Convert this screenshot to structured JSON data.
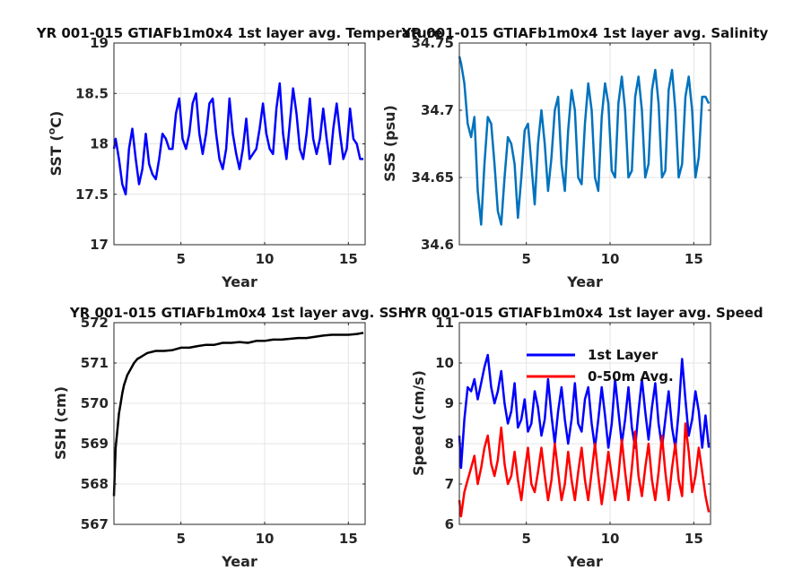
{
  "chart_data": [
    {
      "id": "sst",
      "type": "line",
      "title": "YR 001-015 GTIAFb1m0x4 1st layer avg. Temperature",
      "xlabel": "Year",
      "ylabel": "SST (°C)",
      "ylabel_main": "SST (",
      "ylabel_sup": "o",
      "ylabel_tail": "C)",
      "xlim": [
        1,
        16
      ],
      "ylim": [
        17,
        19
      ],
      "xticks": [
        "5",
        "10",
        "15"
      ],
      "yticks": [
        "17",
        "17.5",
        "18",
        "18.5",
        "19"
      ],
      "grid": true,
      "series": [
        {
          "color": "#0000ff",
          "x": [
            1.0,
            1.1,
            1.3,
            1.5,
            1.7,
            1.9,
            2.1,
            2.3,
            2.5,
            2.7,
            2.9,
            3.1,
            3.3,
            3.5,
            3.7,
            3.9,
            4.1,
            4.3,
            4.5,
            4.7,
            4.9,
            5.1,
            5.3,
            5.5,
            5.7,
            5.9,
            6.1,
            6.3,
            6.5,
            6.7,
            6.9,
            7.1,
            7.3,
            7.5,
            7.7,
            7.9,
            8.1,
            8.3,
            8.5,
            8.7,
            8.9,
            9.1,
            9.3,
            9.5,
            9.7,
            9.9,
            10.1,
            10.3,
            10.5,
            10.7,
            10.9,
            11.1,
            11.3,
            11.5,
            11.7,
            11.9,
            12.1,
            12.3,
            12.5,
            12.7,
            12.9,
            13.1,
            13.3,
            13.5,
            13.7,
            13.9,
            14.1,
            14.3,
            14.5,
            14.7,
            14.9,
            15.1,
            15.3,
            15.5,
            15.7,
            15.9
          ],
          "values": [
            17.95,
            18.05,
            17.85,
            17.6,
            17.5,
            17.95,
            18.15,
            17.85,
            17.6,
            17.75,
            18.1,
            17.8,
            17.7,
            17.65,
            17.85,
            18.1,
            18.05,
            17.95,
            17.95,
            18.3,
            18.45,
            18.05,
            17.95,
            18.1,
            18.4,
            18.5,
            18.1,
            17.9,
            18.1,
            18.4,
            18.45,
            18.1,
            17.85,
            17.75,
            17.95,
            18.45,
            18.1,
            17.9,
            17.75,
            17.95,
            18.25,
            17.85,
            17.9,
            17.95,
            18.15,
            18.4,
            18.1,
            17.95,
            17.9,
            18.35,
            18.6,
            18.1,
            17.85,
            18.2,
            18.55,
            18.3,
            17.95,
            17.85,
            18.1,
            18.45,
            18.05,
            17.9,
            18.05,
            18.35,
            18.05,
            17.8,
            18.15,
            18.4,
            18.1,
            17.85,
            17.95,
            18.35,
            18.05,
            18.0,
            17.85,
            17.85
          ]
        }
      ]
    },
    {
      "id": "sss",
      "type": "line",
      "title": "YR 001-015 GTIAFb1m0x4 1st layer avg. Salinity",
      "xlabel": "Year",
      "ylabel": "SSS (psu)",
      "xlim": [
        1,
        16
      ],
      "ylim": [
        34.6,
        34.75
      ],
      "xticks": [
        "5",
        "10",
        "15"
      ],
      "yticks": [
        "34.6",
        "34.65",
        "34.7",
        "34.75"
      ],
      "grid": true,
      "series": [
        {
          "color": "#0072bd",
          "x": [
            1.0,
            1.1,
            1.3,
            1.5,
            1.7,
            1.9,
            2.1,
            2.3,
            2.5,
            2.7,
            2.9,
            3.1,
            3.3,
            3.5,
            3.7,
            3.9,
            4.1,
            4.3,
            4.5,
            4.7,
            4.9,
            5.1,
            5.3,
            5.5,
            5.7,
            5.9,
            6.1,
            6.3,
            6.5,
            6.7,
            6.9,
            7.1,
            7.3,
            7.5,
            7.7,
            7.9,
            8.1,
            8.3,
            8.5,
            8.7,
            8.9,
            9.1,
            9.3,
            9.5,
            9.7,
            9.9,
            10.1,
            10.3,
            10.5,
            10.7,
            10.9,
            11.1,
            11.3,
            11.5,
            11.7,
            11.9,
            12.1,
            12.3,
            12.5,
            12.7,
            12.9,
            13.1,
            13.3,
            13.5,
            13.7,
            13.9,
            14.1,
            14.3,
            14.5,
            14.7,
            14.9,
            15.1,
            15.3,
            15.5,
            15.7,
            15.9
          ],
          "values": [
            34.74,
            34.735,
            34.72,
            34.69,
            34.68,
            34.695,
            34.64,
            34.615,
            34.66,
            34.695,
            34.69,
            34.66,
            34.625,
            34.615,
            34.65,
            34.68,
            34.675,
            34.66,
            34.62,
            34.65,
            34.685,
            34.69,
            34.66,
            34.63,
            34.675,
            34.7,
            34.675,
            34.64,
            34.665,
            34.7,
            34.71,
            34.66,
            34.64,
            34.685,
            34.715,
            34.7,
            34.65,
            34.645,
            34.69,
            34.72,
            34.7,
            34.65,
            34.64,
            34.695,
            34.72,
            34.705,
            34.655,
            34.65,
            34.705,
            34.725,
            34.7,
            34.65,
            34.655,
            34.71,
            34.725,
            34.7,
            34.65,
            34.66,
            34.715,
            34.73,
            34.705,
            34.65,
            34.655,
            34.715,
            34.73,
            34.7,
            34.65,
            34.66,
            34.71,
            34.725,
            34.7,
            34.65,
            34.665,
            34.71,
            34.71,
            34.705
          ]
        }
      ]
    },
    {
      "id": "ssh",
      "type": "line",
      "title": "YR 001-015 GTIAFb1m0x4 1st layer avg. SSH",
      "xlabel": "Year",
      "ylabel": "SSH (cm)",
      "xlim": [
        1,
        16
      ],
      "ylim": [
        567,
        572
      ],
      "xticks": [
        "5",
        "10",
        "15"
      ],
      "yticks": [
        "567",
        "568",
        "569",
        "570",
        "571",
        "572"
      ],
      "grid": true,
      "series": [
        {
          "color": "#000000",
          "x": [
            1.0,
            1.05,
            1.1,
            1.2,
            1.3,
            1.4,
            1.5,
            1.6,
            1.8,
            2.0,
            2.2,
            2.4,
            2.6,
            2.8,
            3.0,
            3.5,
            4.0,
            4.5,
            5.0,
            5.5,
            6.0,
            6.5,
            7.0,
            7.5,
            8.0,
            8.5,
            9.0,
            9.5,
            10.0,
            10.5,
            11.0,
            11.5,
            12.0,
            12.5,
            13.0,
            13.5,
            14.0,
            14.5,
            15.0,
            15.5,
            15.9
          ],
          "values": [
            567.7,
            568.3,
            568.9,
            569.3,
            569.75,
            570.0,
            570.25,
            570.45,
            570.7,
            570.85,
            571.0,
            571.1,
            571.15,
            571.2,
            571.25,
            571.3,
            571.3,
            571.32,
            571.38,
            571.38,
            571.42,
            571.45,
            571.45,
            571.5,
            571.5,
            571.52,
            571.5,
            571.55,
            571.55,
            571.58,
            571.58,
            571.6,
            571.62,
            571.62,
            571.65,
            571.68,
            571.7,
            571.7,
            571.7,
            571.72,
            571.75
          ]
        }
      ]
    },
    {
      "id": "speed",
      "type": "line",
      "title": "YR 001-015 GTIAFb1m0x4 1st layer avg. Speed",
      "xlabel": "Year",
      "ylabel": "Speed (cm/s)",
      "xlim": [
        1,
        16
      ],
      "ylim": [
        6,
        11
      ],
      "xticks": [
        "5",
        "10",
        "15"
      ],
      "yticks": [
        "6",
        "7",
        "8",
        "9",
        "10",
        "11"
      ],
      "grid": true,
      "legend": "top-right",
      "series": [
        {
          "name": "1st Layer",
          "color": "#0000ff",
          "x": [
            1.0,
            1.1,
            1.3,
            1.5,
            1.7,
            1.9,
            2.1,
            2.3,
            2.5,
            2.7,
            2.9,
            3.1,
            3.3,
            3.5,
            3.7,
            3.9,
            4.1,
            4.3,
            4.5,
            4.7,
            4.9,
            5.1,
            5.3,
            5.5,
            5.7,
            5.9,
            6.1,
            6.3,
            6.5,
            6.7,
            6.9,
            7.1,
            7.3,
            7.5,
            7.7,
            7.9,
            8.1,
            8.3,
            8.5,
            8.7,
            8.9,
            9.1,
            9.3,
            9.5,
            9.7,
            9.9,
            10.1,
            10.3,
            10.5,
            10.7,
            10.9,
            11.1,
            11.3,
            11.5,
            11.7,
            11.9,
            12.1,
            12.3,
            12.5,
            12.7,
            12.9,
            13.1,
            13.3,
            13.5,
            13.7,
            13.9,
            14.1,
            14.3,
            14.5,
            14.7,
            14.9,
            15.1,
            15.3,
            15.5,
            15.7,
            15.9
          ],
          "values": [
            8.2,
            7.4,
            8.6,
            9.4,
            9.3,
            9.6,
            9.1,
            9.5,
            9.9,
            10.2,
            9.4,
            9.0,
            9.3,
            9.8,
            9.0,
            8.5,
            8.8,
            9.5,
            8.4,
            8.6,
            9.1,
            8.3,
            8.5,
            9.3,
            8.9,
            8.2,
            8.6,
            9.6,
            8.7,
            8.0,
            8.8,
            9.4,
            8.6,
            8.0,
            8.6,
            9.5,
            8.5,
            8.3,
            9.1,
            9.4,
            8.5,
            7.9,
            8.6,
            9.4,
            8.7,
            7.9,
            8.5,
            9.6,
            8.8,
            8.0,
            8.6,
            9.4,
            8.4,
            7.9,
            8.8,
            9.6,
            8.8,
            8.1,
            8.9,
            9.5,
            8.5,
            7.9,
            8.6,
            9.3,
            8.4,
            7.9,
            8.8,
            10.1,
            9.1,
            8.2,
            8.6,
            9.3,
            8.8,
            7.9,
            8.7,
            7.9
          ]
        },
        {
          "name": "0-50m Avg.",
          "color": "#ff0000",
          "x": [
            1.0,
            1.1,
            1.3,
            1.5,
            1.7,
            1.9,
            2.1,
            2.3,
            2.5,
            2.7,
            2.9,
            3.1,
            3.3,
            3.5,
            3.7,
            3.9,
            4.1,
            4.3,
            4.5,
            4.7,
            4.9,
            5.1,
            5.3,
            5.5,
            5.7,
            5.9,
            6.1,
            6.3,
            6.5,
            6.7,
            6.9,
            7.1,
            7.3,
            7.5,
            7.7,
            7.9,
            8.1,
            8.3,
            8.5,
            8.7,
            8.9,
            9.1,
            9.3,
            9.5,
            9.7,
            9.9,
            10.1,
            10.3,
            10.5,
            10.7,
            10.9,
            11.1,
            11.3,
            11.5,
            11.7,
            11.9,
            12.1,
            12.3,
            12.5,
            12.7,
            12.9,
            13.1,
            13.3,
            13.5,
            13.7,
            13.9,
            14.1,
            14.3,
            14.5,
            14.7,
            14.9,
            15.1,
            15.3,
            15.5,
            15.7,
            15.9
          ],
          "values": [
            6.6,
            6.2,
            6.8,
            7.1,
            7.4,
            7.7,
            7.0,
            7.4,
            7.9,
            8.2,
            7.5,
            7.2,
            7.6,
            8.4,
            7.5,
            7.0,
            7.2,
            7.8,
            7.1,
            6.6,
            7.3,
            7.9,
            7.0,
            6.8,
            7.3,
            7.9,
            7.2,
            6.6,
            7.1,
            8.0,
            7.3,
            6.6,
            7.0,
            7.8,
            7.1,
            6.6,
            7.3,
            7.9,
            7.1,
            6.6,
            7.3,
            8.0,
            7.2,
            6.5,
            7.1,
            7.8,
            7.2,
            6.6,
            7.2,
            8.1,
            7.3,
            6.6,
            7.4,
            8.3,
            7.2,
            6.7,
            7.4,
            8.0,
            7.1,
            6.6,
            7.3,
            8.2,
            7.3,
            6.6,
            7.4,
            8.0,
            7.1,
            6.7,
            8.5,
            7.8,
            6.8,
            7.2,
            7.9,
            7.3,
            6.7,
            6.3
          ]
        }
      ]
    }
  ]
}
